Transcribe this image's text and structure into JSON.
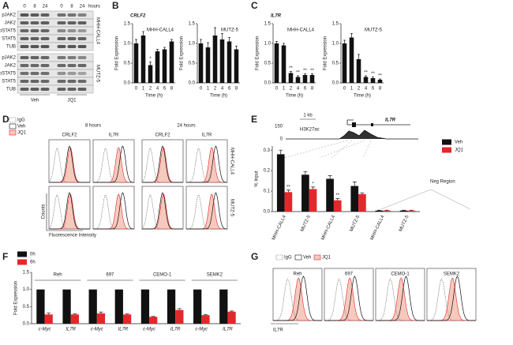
{
  "panels": [
    "A",
    "B",
    "C",
    "D",
    "E",
    "F",
    "G"
  ],
  "blot": {
    "times": [
      0,
      8,
      24,
      0,
      8,
      24
    ],
    "time_unit": "hours",
    "treatments": [
      "Veh",
      "JQ1"
    ],
    "proteins": [
      [
        "pJAK2",
        "JAK2",
        "pSTAT5",
        "STAT5",
        "TUB"
      ],
      [
        "pJAK2",
        "JAK2",
        "pSTAT5",
        "STAT5",
        "TUB"
      ]
    ],
    "cell_lines": [
      "MHH-CALL4",
      "MUTZ-5"
    ]
  },
  "flow_d": {
    "legend": [
      "IgG",
      "Veh",
      "JQ1"
    ],
    "times": [
      "8 hours",
      "24 hours"
    ],
    "markers": [
      "CRLF2",
      "IL7R",
      "CRLF2",
      "IL7R"
    ],
    "cell_lines": [
      "MHH-CALL4",
      "MUTZ-5"
    ],
    "y_label": "Counts",
    "x_label": "Fluorescence Intensity"
  },
  "chip_track": {
    "scale": "1 kb",
    "gene": "IL7R",
    "ymax": 150,
    "ymin": 0,
    "mark": "H3K27ac"
  },
  "chart_data": [
    {
      "type": "bar",
      "title": "CRLF2",
      "subtitle": "MHH-CALL4",
      "categories": [
        "0",
        "1",
        "2",
        "4",
        "6",
        "8"
      ],
      "values": [
        1.0,
        1.2,
        0.45,
        0.8,
        0.85,
        1.05
      ],
      "errors": [
        0.1,
        0.1,
        0.08,
        0.05,
        0.05,
        0.05
      ],
      "stars": [
        null,
        null,
        "*",
        null,
        null,
        null
      ],
      "color": "#111111",
      "ylim": [
        0,
        1.5
      ],
      "yticks": [
        {
          "value": 0,
          "label": "0.0"
        },
        {
          "value": 0.5,
          "label": "0.5"
        },
        {
          "value": 1,
          "label": "1.0"
        },
        {
          "value": 1.5,
          "label": "1.5"
        }
      ],
      "y_label": "Fold Expression",
      "x_label": "Time (h)"
    },
    {
      "type": "bar",
      "subtitle": "MUTZ-5",
      "categories": [
        "0",
        "1",
        "2",
        "4",
        "6",
        "8"
      ],
      "values": [
        1.0,
        0.9,
        1.2,
        1.1,
        1.05,
        0.85
      ],
      "errors": [
        0.1,
        0.12,
        0.2,
        0.15,
        0.1,
        0.08
      ],
      "color": "#111111",
      "ylim": [
        0,
        1.5
      ],
      "yticks": [
        {
          "value": 0,
          "label": "0.0"
        },
        {
          "value": 0.5,
          "label": "0.5"
        },
        {
          "value": 1,
          "label": "1.0"
        },
        {
          "value": 1.5,
          "label": "1.5"
        }
      ],
      "y_label": "Fold Expression",
      "x_label": "Time (h)"
    },
    {
      "type": "bar",
      "title": "IL7R",
      "subtitle": "MHH-CALL4",
      "categories": [
        "0",
        "1",
        "2",
        "4",
        "6",
        "8"
      ],
      "values": [
        1.0,
        0.95,
        0.25,
        0.15,
        0.2,
        0.2
      ],
      "errors": [
        0.05,
        0.05,
        0.04,
        0.03,
        0.03,
        0.03
      ],
      "stars": [
        null,
        null,
        "**",
        "**",
        "**",
        "**"
      ],
      "color": "#111111",
      "ylim": [
        0,
        1.5
      ],
      "yticks": [
        {
          "value": 0,
          "label": "0.0"
        },
        {
          "value": 0.5,
          "label": "0.5"
        },
        {
          "value": 1,
          "label": "1.0"
        },
        {
          "value": 1.5,
          "label": "1.5"
        }
      ],
      "y_label": "Fold Expression",
      "x_label": "Time (h)"
    },
    {
      "type": "bar",
      "subtitle": "MUTZ-5",
      "categories": [
        "0",
        "1",
        "2",
        "4",
        "6",
        "8"
      ],
      "values": [
        1.0,
        1.15,
        0.6,
        0.15,
        0.12,
        0.08
      ],
      "errors": [
        0.08,
        0.1,
        0.12,
        0.03,
        0.03,
        0.02
      ],
      "stars": [
        null,
        null,
        null,
        "**",
        "**",
        "**"
      ],
      "color": "#111111",
      "ylim": [
        0,
        1.5
      ],
      "yticks": [
        {
          "value": 0,
          "label": "0.0"
        },
        {
          "value": 0.5,
          "label": "0.5"
        },
        {
          "value": 1,
          "label": "1.0"
        },
        {
          "value": 1.5,
          "label": "1.5"
        }
      ],
      "y_label": "Fold Expression",
      "x_label": "Time (h)"
    },
    {
      "type": "bar",
      "categories": [
        "MHH-CALL4",
        "MUTZ-5",
        "MHH-CALL4",
        "MUTZ-5",
        "MHH-CALL4",
        "MUTZ-5"
      ],
      "series": [
        {
          "name": "Veh",
          "color": "#111111",
          "values": [
            0.28,
            0.18,
            0.16,
            0.125,
            0.005,
            0.005
          ],
          "errors": [
            0.02,
            0.015,
            0.015,
            0.02,
            0.002,
            0.002
          ]
        },
        {
          "name": "JQ1",
          "color": "#e3282c",
          "values": [
            0.095,
            0.11,
            0.055,
            0.085,
            0.005,
            0.005
          ],
          "errors": [
            0.01,
            0.01,
            0.008,
            0.005,
            0.002,
            0.002
          ],
          "stars": [
            "**",
            "*",
            "**",
            null,
            null,
            null
          ]
        }
      ],
      "annotation": "Neg Region",
      "ylim": [
        0,
        0.32
      ],
      "yticks": [
        {
          "value": 0,
          "label": "0.0"
        },
        {
          "value": 0.1,
          "label": "0.1"
        },
        {
          "value": 0.2,
          "label": "0.2"
        },
        {
          "value": 0.3,
          "label": "0.3"
        }
      ],
      "y_label": "% Input"
    },
    {
      "type": "bar",
      "groups": [
        "Reh",
        "697",
        "CEMO-1",
        "SEMK2"
      ],
      "categories": [
        "c-Myc",
        "IL7R",
        "c-Myc",
        "IL7R",
        "c-Myc",
        "IL7R",
        "c-Myc",
        "IL7R"
      ],
      "series": [
        {
          "name": "0h",
          "color": "#111111",
          "values": [
            1,
            1,
            1,
            1,
            1,
            1,
            1,
            1
          ]
        },
        {
          "name": "6h",
          "color": "#e3282c",
          "values": [
            0.27,
            0.27,
            0.3,
            0.27,
            0.2,
            0.4,
            0.25,
            0.35
          ],
          "errors": [
            0.04,
            0.02,
            0.04,
            0.02,
            0.01,
            0.04,
            0.02,
            0.02
          ]
        }
      ],
      "ylim": [
        0,
        1.5
      ],
      "yticks": [
        {
          "value": 0,
          "label": "0.0"
        },
        {
          "value": 0.5,
          "label": "0.5"
        },
        {
          "value": 1,
          "label": "1.0"
        },
        {
          "value": 1.5,
          "label": "1.5"
        }
      ],
      "y_label": "Fold Expression"
    }
  ],
  "flow_g": {
    "legend": [
      "IgG",
      "Veh",
      "JQ1"
    ],
    "cell_lines": [
      "Reh",
      "697",
      "CEMO-1",
      "SEMK2"
    ],
    "x_label": "IL7R"
  }
}
